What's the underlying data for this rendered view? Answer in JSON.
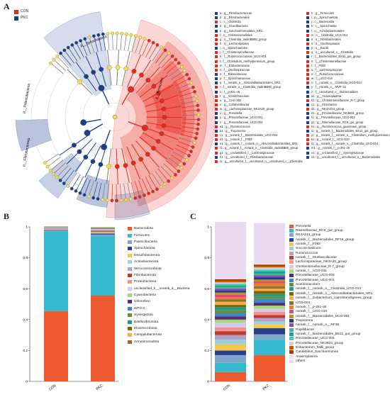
{
  "panels": {
    "a": "A",
    "b": "B",
    "c": "C"
  },
  "groups": [
    {
      "name": "CON",
      "color": "#e8281d"
    },
    {
      "name": "PKC",
      "color": "#1b3f8f"
    }
  ],
  "cladogram": {
    "clade_labels": [
      "p__Spirochaetota",
      "p__Patescibacteria",
      "p__Fibrobacterota",
      "p__Firmicutes"
    ],
    "key_columns": [
      [
        {
          "t": "a : g__Fibrobacteraceae",
          "g": "PKC"
        },
        {
          "t": "b : g__Fibrobacterales",
          "g": "PKC"
        },
        {
          "t": "c : c__Clostridia",
          "g": "CON"
        },
        {
          "t": "d : g__Gracilibacteria",
          "g": "PKC"
        },
        {
          "t": "e : g__Saccharimonadales_SR1",
          "g": "PKC"
        },
        {
          "t": "f : o__Christensenellales",
          "g": "CON"
        },
        {
          "t": "g : o__Clostridia_vadinBB60_group",
          "g": "CON"
        },
        {
          "t": "h : o__Lachnospirales",
          "g": "CON"
        },
        {
          "t": "i : o__Spirochaetales",
          "g": "PKC"
        },
        {
          "t": "j : f__Christensenellaceae",
          "g": "CON"
        },
        {
          "t": "k : f__Ruminococcaceae_UCG-001",
          "g": "CON"
        },
        {
          "t": "l : f__Clostridium_methylpentosum_group",
          "g": "CON"
        },
        {
          "t": "m : f__Eubacteriaceae",
          "g": "CON"
        },
        {
          "t": "n : f__Oscillospiraceae",
          "g": "CON"
        },
        {
          "t": "o : f__Rikenellaceae",
          "g": "PKC"
        },
        {
          "t": "p : f__Spirochaetaceae",
          "g": "PKC"
        },
        {
          "t": "q : f__norank_o__Absconditabacteriales_SR1",
          "g": "PKC"
        },
        {
          "t": "r : f__norank_o__Clostridia_vadinBB60_group",
          "g": "CON"
        },
        {
          "t": "s : f__p-251-o5",
          "g": "PKC"
        },
        {
          "t": "t : g__Acetitomaculum",
          "g": "CON"
        },
        {
          "t": "u : g__CAG-352",
          "g": "CON"
        },
        {
          "t": "v : g__Colidextribacter",
          "g": "CON"
        },
        {
          "t": "w : g__Lachnospiraceae_NK3A20_group",
          "g": "CON"
        },
        {
          "t": "x : g__Prevotella",
          "g": "PKC"
        },
        {
          "t": "y : g__Prevotellaceae_UCG-001",
          "g": "PKC"
        },
        {
          "t": "z : g__Prevotellaceae_UCG-004",
          "g": "PKC"
        },
        {
          "t": "a1 : g__Ruminococcus",
          "g": "CON"
        },
        {
          "t": "b1 : g__Treponema",
          "g": "PKC"
        },
        {
          "t": "c1 : g__norank_f__Bacteroidales_UCG-001",
          "g": "CON"
        },
        {
          "t": "d1 : g__norank_f__F082",
          "g": "CON"
        },
        {
          "t": "e1 : g__norank_f__norank_o__Absconditabacteriales_SR1",
          "g": "PKC"
        },
        {
          "t": "f1 : g__norank_f__norank_o__Clostridia_vadinBB60_group",
          "g": "CON"
        },
        {
          "t": "g1 : g__unclassified_f__Lachnospiraceae",
          "g": "CON"
        },
        {
          "t": "h1 : g__uncultured_f__Fibrobacteraceae",
          "g": "PKC"
        },
        {
          "t": "i1 : g__uncultured_f__uncultured_o__uncultured_c__Clostridia",
          "g": "CON"
        }
      ],
      [
        {
          "t": "h : g__Firmicutes",
          "g": "CON"
        },
        {
          "t": "i : p__Spirochaetota",
          "g": "PKC"
        },
        {
          "t": "j : c__Bacteroidia",
          "g": "PKC"
        },
        {
          "t": "k : c__Spirochaetia",
          "g": "PKC"
        },
        {
          "t": "l : o__Acholeplasmatales",
          "g": "PKC"
        },
        {
          "t": "m : c__Clostridia_UCG-014",
          "g": "CON"
        },
        {
          "t": "n : o__Fibrobacterales",
          "g": "PKC"
        },
        {
          "t": "o : o__Oscillospirales",
          "g": "CON"
        },
        {
          "t": "p : o__Bacilli",
          "g": "PKC"
        },
        {
          "t": "q : o__uncultured_c__Clostridia",
          "g": "CON"
        },
        {
          "t": "r : f__Bacteroidales_BS11_gut_group",
          "g": "PKC"
        },
        {
          "t": "s : f__Christensenellaceae",
          "g": "CON"
        },
        {
          "t": "t : f__F082",
          "g": "CON"
        },
        {
          "t": "u : f__Lachnospiraceae",
          "g": "CON"
        },
        {
          "t": "v : f__Ruminococcaceae",
          "g": "CON"
        },
        {
          "t": "w : f__UCG-010",
          "g": "CON"
        },
        {
          "t": "x : f__norank_o__Clostridia_UCG-014",
          "g": "CON"
        },
        {
          "t": "y : f__norank_o__MVP-15",
          "g": "PKC"
        },
        {
          "t": "z : f__uncultured_o__Bacteroidales",
          "g": "PKC"
        },
        {
          "t": "a1 : g__Anaeroplasma",
          "g": "PKC"
        },
        {
          "t": "b1 : g__Christensenellaceae_R-7_group",
          "g": "CON"
        },
        {
          "t": "c1 : g__Fibrobacter",
          "g": "PKC"
        },
        {
          "t": "d1 : g__NK4A214_group",
          "g": "CON"
        },
        {
          "t": "e1 : g__Prevotellaceae_NK3B31_group",
          "g": "PKC"
        },
        {
          "t": "f1 : g__Prevotellaceae_UCG-003",
          "g": "PKC"
        },
        {
          "t": "g1 : g__Rikenellaceae_RC9_gut_group",
          "g": "PKC"
        },
        {
          "t": "h1 : g__Ruminococcus_gauvreauii_group",
          "g": "CON"
        },
        {
          "t": "i1 : g__norank_f__Bacteroidales_BS11_gut_group",
          "g": "PKC"
        },
        {
          "t": "j1 : g__norank_f__norank_o__Clostridium_methylpentosum_group",
          "g": "CON"
        },
        {
          "t": "k1 : g__norank_f__UCG-010",
          "g": "CON"
        },
        {
          "t": "l1 : g__norank_f__norank_o__Clostridia_UCG-014",
          "g": "CON"
        },
        {
          "t": "m1 : g__norank_f__p-251-o5",
          "g": "PKC"
        },
        {
          "t": "n1 : g__unclassified_f__Synergistaceae",
          "g": "PKC"
        },
        {
          "t": "o1 : g__uncultured_f__uncultured_o__Bacteroidales",
          "g": "PKC"
        }
      ]
    ]
  },
  "chart_data": [
    {
      "type": "bar",
      "stacked": true,
      "categories": [
        "CON",
        "PKC"
      ],
      "ylim": [
        0,
        1
      ],
      "yticks": [
        "0",
        "0.2",
        "0.4",
        "0.6",
        "0.8",
        "1"
      ],
      "series": [
        {
          "name": "Bacteroidota",
          "values": [
            0.455,
            0.555
          ],
          "color": "#ee5a2f"
        },
        {
          "name": "Firmicutes",
          "values": [
            0.515,
            0.385
          ],
          "color": "#34b9cf"
        },
        {
          "name": "Patescibacteria",
          "values": [
            0.006,
            0.01
          ],
          "color": "#7fa7c9"
        },
        {
          "name": "Spirochaetota",
          "values": [
            0.004,
            0.007
          ],
          "color": "#2c3f8c"
        },
        {
          "name": "Desulfobacterota",
          "values": [
            0.003,
            0.004
          ],
          "color": "#f2c94c"
        },
        {
          "name": "Actinobacteriota",
          "values": [
            0.003,
            0.004
          ],
          "color": "#9bd0e0"
        },
        {
          "name": "Verrucomicrobiota",
          "values": [
            0.003,
            0.004
          ],
          "color": "#b1a3c8"
        },
        {
          "name": "Fibrobacterota",
          "values": [
            0.002,
            0.006
          ],
          "color": "#c0392b"
        },
        {
          "name": "Proteobacteria",
          "values": [
            0.002,
            0.004
          ],
          "color": "#f1948a"
        },
        {
          "name": "unclassified_k__norank_d__Bacteria",
          "values": [
            0.002,
            0.004
          ],
          "color": "#d9c7e8"
        },
        {
          "name": "Cyanobacteria",
          "values": [
            0.001,
            0.003
          ],
          "color": "#a3d977"
        },
        {
          "name": "Chloroflexi",
          "values": [
            0.001,
            0.002
          ],
          "color": "#5b2c6f"
        },
        {
          "name": "WPS-2",
          "values": [
            0.001,
            0.002
          ],
          "color": "#3a86c8"
        },
        {
          "name": "Synergistota",
          "values": [
            0.001,
            0.002
          ],
          "color": "#6c8b3a"
        },
        {
          "name": "Bdellovibrionota",
          "values": [
            0.001,
            0.002
          ],
          "color": "#16a085"
        },
        {
          "name": "Elusimicrobiota",
          "values": [
            0.001,
            0.002
          ],
          "color": "#7d6608"
        },
        {
          "name": "Campylobacterota",
          "values": [
            0.001,
            0.001
          ],
          "color": "#f5b041"
        },
        {
          "name": "Armatimonadota",
          "values": [
            0.001,
            0.001
          ],
          "color": "#8e6e3a"
        }
      ]
    },
    {
      "type": "bar",
      "stacked": true,
      "categories": [
        "CON",
        "PKC"
      ],
      "ylim": [
        0,
        1
      ],
      "yticks": [
        "0",
        "0.2",
        "0.4",
        "0.6",
        "0.8",
        "1"
      ],
      "series": [
        {
          "name": "Prevotella",
          "values": [
            0.06,
            0.17
          ],
          "color": "#ee5a2f"
        },
        {
          "name": "Rikenellaceae_RC9_gut_group",
          "values": [
            0.06,
            0.1
          ],
          "color": "#34b9cf"
        },
        {
          "name": "NK4A214_group",
          "values": [
            0.05,
            0.035
          ],
          "color": "#7fa7c9"
        },
        {
          "name": "norank_f__Bacteroidales_RF16_group",
          "values": [
            0.03,
            0.04
          ],
          "color": "#2c3f8c"
        },
        {
          "name": "norank_f__F082",
          "values": [
            0.04,
            0.025
          ],
          "color": "#f2c94c"
        },
        {
          "name": "Succiniclasticum",
          "values": [
            0.03,
            0.02
          ],
          "color": "#9bd0e0"
        },
        {
          "name": "Ruminococcus",
          "values": [
            0.03,
            0.02
          ],
          "color": "#b1a3c8"
        },
        {
          "name": "norank_f__Muribaculaceae",
          "values": [
            0.025,
            0.02
          ],
          "color": "#c0392b"
        },
        {
          "name": "Lachnospiraceae_NK3A20_group",
          "values": [
            0.025,
            0.02
          ],
          "color": "#f1948a"
        },
        {
          "name": "Christensenellaceae_R-7_group",
          "values": [
            0.03,
            0.02
          ],
          "color": "#d9c7e8"
        },
        {
          "name": "norank_f__UCG-011",
          "values": [
            0.02,
            0.02
          ],
          "color": "#a3d977"
        },
        {
          "name": "Prevotellaceae_UCG-003",
          "values": [
            0.02,
            0.02
          ],
          "color": "#5b2c6f"
        },
        {
          "name": "Prevotellaceae_UCG-001",
          "values": [
            0.02,
            0.025
          ],
          "color": "#3a86c8"
        },
        {
          "name": "Acetitomaculum",
          "values": [
            0.02,
            0.015
          ],
          "color": "#6c8b3a"
        },
        {
          "name": "norank_f__norank_o__Clostridia_UCG-014",
          "values": [
            0.02,
            0.015
          ],
          "color": "#16a085"
        },
        {
          "name": "norank_f__norank_o__Absconditabacteriales_SR1",
          "values": [
            0.015,
            0.02
          ],
          "color": "#7d6608"
        },
        {
          "name": "norank_f__Eubacterium_coprostanoligenes_group",
          "values": [
            0.02,
            0.015
          ],
          "color": "#f5b041"
        },
        {
          "name": "UCG-004",
          "values": [
            0.015,
            0.015
          ],
          "color": "#8e6e3a"
        },
        {
          "name": "norank_f__p-251-o5",
          "values": [
            0.015,
            0.02
          ],
          "color": "#e67e22"
        },
        {
          "name": "norank_f__UCG-010",
          "values": [
            0.015,
            0.012
          ],
          "color": "#e84393"
        },
        {
          "name": "norank_f__Bacteroidales_UCG-001",
          "values": [
            0.015,
            0.012
          ],
          "color": "#b7950b"
        },
        {
          "name": "Treponema",
          "values": [
            0.012,
            0.015
          ],
          "color": "#1f3a93"
        },
        {
          "name": "norank_f__norank_o__RF39",
          "values": [
            0.012,
            0.012
          ],
          "color": "#8e44ad"
        },
        {
          "name": "Papillibacter",
          "values": [
            0.012,
            0.01
          ],
          "color": "#45b39d"
        },
        {
          "name": "norank_f__Bacteroidales_BS11_gut_group",
          "values": [
            0.01,
            0.015
          ],
          "color": "#17a589"
        },
        {
          "name": "Prevotellaceae_UCG-004",
          "values": [
            0.01,
            0.012
          ],
          "color": "#48c9b0"
        },
        {
          "name": "Prevotellaceae_NK3B31_group",
          "values": [
            0.01,
            0.015
          ],
          "color": "#ccd1d1"
        },
        {
          "name": "Eubacterium_hallii_group",
          "values": [
            0.01,
            0.008
          ],
          "color": "#d35400"
        },
        {
          "name": "Candidatus_Saccharimonas",
          "values": [
            0.01,
            0.01
          ],
          "color": "#a04000"
        },
        {
          "name": "Anaeroplasma",
          "values": [
            0.005,
            0.01
          ],
          "color": "#fadbd8"
        },
        {
          "name": "others",
          "values": [
            0.366,
            0.258
          ],
          "color": "#e8daef"
        }
      ]
    }
  ]
}
